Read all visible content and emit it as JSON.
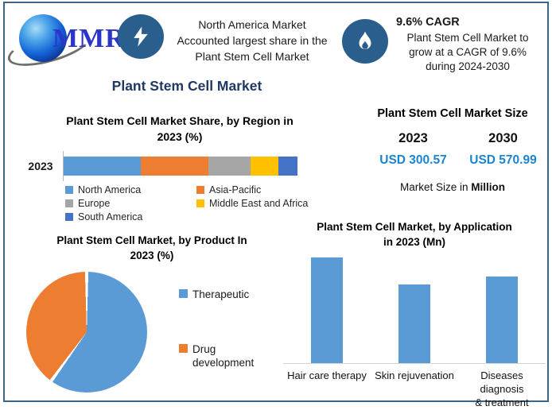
{
  "page_title": "Plant Stem Cell Market",
  "header": {
    "logo_text": "MMR",
    "left_highlight": {
      "icon": "lightning-icon",
      "lines": [
        "North America Market",
        "Accounted largest share in the",
        "Plant Stem Cell Market"
      ]
    },
    "right_highlight": {
      "icon": "flame-icon",
      "title": "9.6% CAGR",
      "lines": [
        "Plant Stem Cell Market to",
        "grow at a CAGR of 9.6%",
        "during 2024-2030"
      ]
    }
  },
  "market_size": {
    "title": "Plant Stem Cell Market Size",
    "years": [
      "2023",
      "2030"
    ],
    "values": [
      "USD 300.57",
      "USD 570.99"
    ],
    "caption_text": "Market Size in ",
    "caption_emphasis": "Million",
    "value_color": "#1B84D0"
  },
  "chart_data": [
    {
      "type": "bar",
      "variant": "horizontal-stacked",
      "title": "Plant Stem Cell Market Share, by Region in 2023 (%)",
      "title_lines": [
        "Plant Stem Cell Market Share, by Region in",
        "2023 (%)"
      ],
      "categories": [
        "2023"
      ],
      "unit": "%",
      "legend_position": "bottom",
      "series": [
        {
          "name": "North America",
          "values": [
            33
          ],
          "color": "#5B9BD5"
        },
        {
          "name": "Asia-Pacific",
          "values": [
            29
          ],
          "color": "#ED7D31"
        },
        {
          "name": "Europe",
          "values": [
            18
          ],
          "color": "#A6A6A6"
        },
        {
          "name": "Middle East and Africa",
          "values": [
            12
          ],
          "color": "#FFC000"
        },
        {
          "name": "South America",
          "values": [
            8
          ],
          "color": "#4472C4"
        }
      ],
      "values_estimated": true
    },
    {
      "type": "pie",
      "title": "Plant Stem Cell Market, by Product In 2023 (%)",
      "title_lines": [
        "Plant Stem Cell Market, by Product In",
        "2023 (%)"
      ],
      "labels": [
        "Therapeutic",
        "Drug development"
      ],
      "values": [
        60,
        40
      ],
      "colors": [
        "#5B9BD5",
        "#ED7D31"
      ],
      "unit": "%",
      "legend_position": "right",
      "values_estimated": true
    },
    {
      "type": "bar",
      "title": "Plant Stem Cell Market, by Application in 2023 (Mn)",
      "title_lines": [
        "Plant Stem Cell Market, by Application",
        "in 2023 (Mn)"
      ],
      "categories": [
        "Hair care therapy",
        "Skin rejuvenation",
        "Diseases diagnosis & treatment"
      ],
      "category_lines": [
        [
          "Hair care therapy"
        ],
        [
          "Skin rejuvenation"
        ],
        [
          "Diseases diagnosis",
          "& treatment"
        ]
      ],
      "values": [
        100,
        74,
        82
      ],
      "ylim": [
        0,
        105
      ],
      "bar_color": "#5B9BD5",
      "values_estimated": true
    }
  ],
  "colors": {
    "frame_border": "#3A6586",
    "icon_circle": "#2A5E8C",
    "accent_navy": "#1F3864",
    "value_blue": "#1B84D0"
  }
}
